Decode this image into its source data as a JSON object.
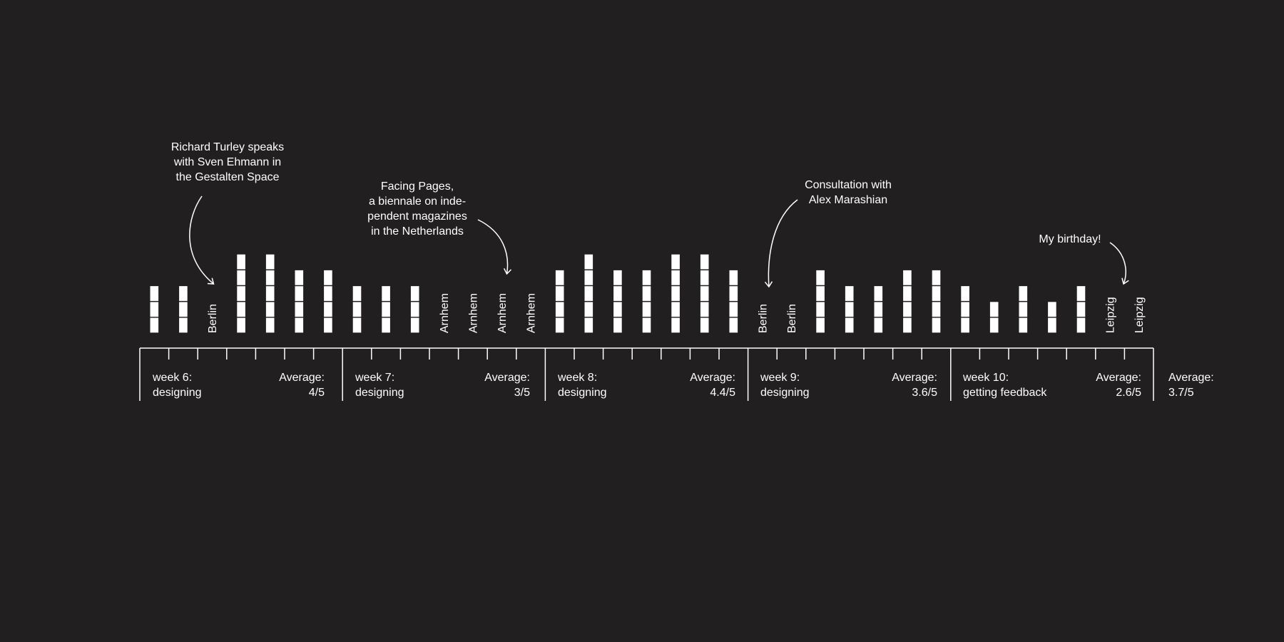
{
  "colors": {
    "background": "#221f20",
    "foreground": "#ffffff"
  },
  "chart_data": {
    "type": "bar",
    "unit": "blocks",
    "ylim": [
      0,
      5
    ],
    "grid": false,
    "legend": "none",
    "days": [
      {
        "value": 3
      },
      {
        "value": 3
      },
      {
        "label": "Berlin"
      },
      {
        "value": 5
      },
      {
        "value": 5
      },
      {
        "value": 4
      },
      {
        "value": 4
      },
      {
        "value": 3
      },
      {
        "value": 3
      },
      {
        "value": 3
      },
      {
        "label": "Arnhem"
      },
      {
        "label": "Arnhem"
      },
      {
        "label": "Arnhem"
      },
      {
        "label": "Arnhem"
      },
      {
        "value": 4
      },
      {
        "value": 5
      },
      {
        "value": 4
      },
      {
        "value": 4
      },
      {
        "value": 5
      },
      {
        "value": 5
      },
      {
        "value": 4
      },
      {
        "label": "Berlin"
      },
      {
        "label": "Berlin"
      },
      {
        "value": 4
      },
      {
        "value": 3
      },
      {
        "value": 3
      },
      {
        "value": 4
      },
      {
        "value": 4
      },
      {
        "value": 3
      },
      {
        "value": 2
      },
      {
        "value": 3
      },
      {
        "value": 2
      },
      {
        "value": 3
      },
      {
        "label": "Leipzig"
      },
      {
        "label": "Leipzig"
      }
    ],
    "weeks": [
      {
        "label": "week 6:\ndesigning",
        "average": "Average:\n4/5"
      },
      {
        "label": "week 7:\ndesigning",
        "average": "Average:\n3/5"
      },
      {
        "label": "week 8:\ndesigning",
        "average": "Average:\n4.4/5"
      },
      {
        "label": "week 9:\ndesigning",
        "average": "Average:\n3.6/5"
      },
      {
        "label": "week 10:\ngetting feedback",
        "average": "Average:\n2.6/5"
      }
    ],
    "overall_average": "Average:\n3.7/5",
    "annotations": [
      {
        "text": "Richard Turley speaks\nwith Sven Ehmann in\nthe Gestalten Space",
        "day": 2
      },
      {
        "text": "Facing Pages,\na biennale on inde-\npendent magazines\nin the Netherlands",
        "day": 12
      },
      {
        "text": "Consultation with\nAlex Marashian",
        "day": 21
      },
      {
        "text": "My birthday!",
        "day": 33
      }
    ]
  }
}
